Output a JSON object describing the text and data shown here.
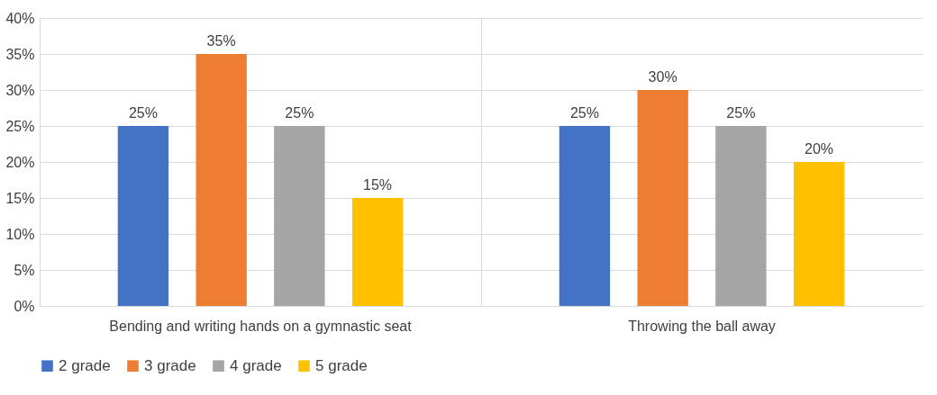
{
  "chart_data": {
    "type": "bar",
    "categories": [
      "Bending and writing hands on a gymnastic seat",
      "Throwing the ball away"
    ],
    "series": [
      {
        "name": "2 grade",
        "color": "#4472c4",
        "values": [
          25,
          25
        ],
        "value_labels": [
          "25%",
          "25%"
        ]
      },
      {
        "name": "3 grade",
        "color": "#ed7d31",
        "values": [
          35,
          30
        ],
        "value_labels": [
          "35%",
          "30%"
        ]
      },
      {
        "name": "4 grade",
        "color": "#a5a5a5",
        "values": [
          25,
          25
        ],
        "value_labels": [
          "25%",
          "25%"
        ]
      },
      {
        "name": "5 grade",
        "color": "#ffc000",
        "values": [
          15,
          20
        ],
        "value_labels": [
          "15%",
          "20%"
        ]
      }
    ],
    "ylim": [
      0,
      40
    ],
    "yticks": [
      {
        "value": 0,
        "label": "0%"
      },
      {
        "value": 5,
        "label": "5%"
      },
      {
        "value": 10,
        "label": "10%"
      },
      {
        "value": 15,
        "label": "15%"
      },
      {
        "value": 20,
        "label": "20%"
      },
      {
        "value": 25,
        "label": "25%"
      },
      {
        "value": 30,
        "label": "30%"
      },
      {
        "value": 35,
        "label": "35%"
      },
      {
        "value": 40,
        "label": "40%"
      }
    ],
    "grid": "y",
    "legend": "bottom"
  }
}
